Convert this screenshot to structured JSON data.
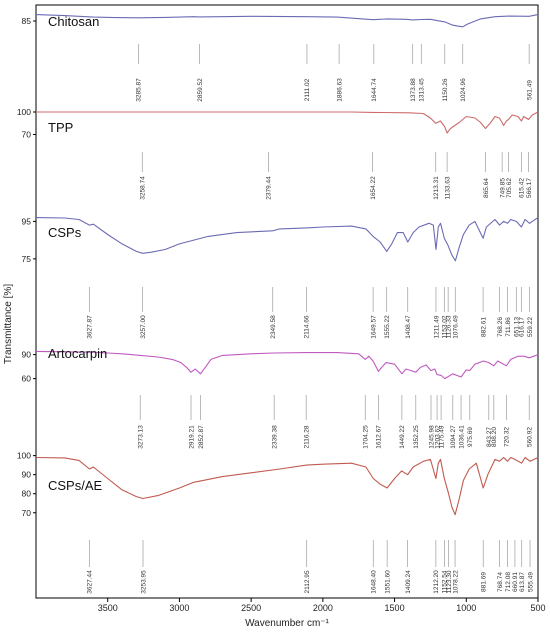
{
  "chart_data": {
    "type": "line",
    "xlabel": "Wavenumber cm⁻¹",
    "ylabel": "Transmittance [%]",
    "xlim": [
      4000,
      500
    ],
    "x_reversed": true,
    "x_ticks": [
      3500,
      3000,
      2500,
      2000,
      1500,
      1000,
      500
    ],
    "grid": false,
    "legend": "none",
    "panels": [
      {
        "name": "Chitosan",
        "color": "#6b6bb4",
        "y_ticks": [
          85
        ],
        "ylim": [
          78,
          92
        ],
        "spectrum": [
          [
            4000,
            88
          ],
          [
            3800,
            87.5
          ],
          [
            3600,
            86.8
          ],
          [
            3450,
            86.6
          ],
          [
            3285,
            86.5
          ],
          [
            3100,
            86.7
          ],
          [
            2900,
            87.0
          ],
          [
            2860,
            86.9
          ],
          [
            2500,
            87.2
          ],
          [
            2111,
            87.0
          ],
          [
            1900,
            86.8
          ],
          [
            1650,
            85.6
          ],
          [
            1550,
            86.0
          ],
          [
            1420,
            85.8
          ],
          [
            1375,
            85.5
          ],
          [
            1313,
            85.7
          ],
          [
            1250,
            85.8
          ],
          [
            1150,
            84.6
          ],
          [
            1100,
            83.2
          ],
          [
            1060,
            82.6
          ],
          [
            1025,
            82.3
          ],
          [
            990,
            83.6
          ],
          [
            900,
            86.0
          ],
          [
            800,
            87.0
          ],
          [
            700,
            87.3
          ],
          [
            562,
            87.2
          ],
          [
            500,
            88.0
          ]
        ],
        "peaks": [
          "3285.87",
          "2859.52",
          "2111.02",
          "1886.63",
          "1644.74",
          "1373.88",
          "1313.45",
          "1150.26",
          "1024.96",
          "561.49"
        ]
      },
      {
        "name": "TPP",
        "color": "#cc6b6b",
        "y_ticks": [
          100,
          70
        ],
        "ylim": [
          60,
          108
        ],
        "spectrum": [
          [
            4000,
            100
          ],
          [
            3800,
            100
          ],
          [
            3600,
            100
          ],
          [
            3400,
            100
          ],
          [
            3259,
            100
          ],
          [
            3000,
            100
          ],
          [
            2500,
            100
          ],
          [
            2379,
            100
          ],
          [
            2100,
            100
          ],
          [
            1800,
            100
          ],
          [
            1654,
            99.5
          ],
          [
            1400,
            99
          ],
          [
            1300,
            98
          ],
          [
            1250,
            92
          ],
          [
            1213,
            85
          ],
          [
            1180,
            88
          ],
          [
            1150,
            80
          ],
          [
            1134,
            72
          ],
          [
            1110,
            78
          ],
          [
            1050,
            86
          ],
          [
            1000,
            94
          ],
          [
            940,
            92
          ],
          [
            900,
            86
          ],
          [
            866,
            78
          ],
          [
            830,
            86
          ],
          [
            800,
            94
          ],
          [
            770,
            92
          ],
          [
            750,
            86
          ],
          [
            740,
            82
          ],
          [
            720,
            88
          ],
          [
            706,
            90
          ],
          [
            680,
            96
          ],
          [
            640,
            94
          ],
          [
            615,
            88
          ],
          [
            600,
            94
          ],
          [
            566,
            90
          ],
          [
            540,
            96
          ],
          [
            500,
            100
          ]
        ],
        "peaks": [
          "3258.74",
          "2379.44",
          "1654.22",
          "1213.31",
          "1133.63",
          "865.64",
          "749.85",
          "705.62",
          "615.42",
          "566.17"
        ]
      },
      {
        "name": "CSPs",
        "color": "#6b6bb4",
        "y_ticks": [
          95,
          75
        ],
        "ylim": [
          68,
          100
        ],
        "spectrum": [
          [
            4000,
            97
          ],
          [
            3800,
            96.8
          ],
          [
            3700,
            96
          ],
          [
            3628,
            93
          ],
          [
            3600,
            93.5
          ],
          [
            3500,
            88
          ],
          [
            3400,
            83
          ],
          [
            3300,
            79
          ],
          [
            3257,
            78
          ],
          [
            3200,
            78.5
          ],
          [
            3100,
            80
          ],
          [
            3000,
            83
          ],
          [
            2900,
            85
          ],
          [
            2800,
            87
          ],
          [
            2600,
            89
          ],
          [
            2350,
            90
          ],
          [
            2300,
            91
          ],
          [
            2115,
            91.5
          ],
          [
            2000,
            92
          ],
          [
            1800,
            92.5
          ],
          [
            1700,
            91
          ],
          [
            1650,
            87
          ],
          [
            1600,
            84
          ],
          [
            1555,
            79
          ],
          [
            1520,
            83
          ],
          [
            1480,
            89
          ],
          [
            1440,
            89
          ],
          [
            1408,
            84
          ],
          [
            1370,
            89
          ],
          [
            1330,
            92
          ],
          [
            1260,
            94
          ],
          [
            1230,
            93
          ],
          [
            1211,
            80
          ],
          [
            1195,
            92
          ],
          [
            1180,
            94
          ],
          [
            1153,
            86
          ],
          [
            1126,
            82
          ],
          [
            1100,
            77
          ],
          [
            1076,
            74
          ],
          [
            1050,
            81
          ],
          [
            1020,
            88
          ],
          [
            980,
            93
          ],
          [
            940,
            95
          ],
          [
            883,
            86
          ],
          [
            860,
            92
          ],
          [
            800,
            96
          ],
          [
            768,
            93
          ],
          [
            740,
            95
          ],
          [
            712,
            94
          ],
          [
            690,
            96
          ],
          [
            651,
            95
          ],
          [
            616,
            92
          ],
          [
            590,
            96
          ],
          [
            559,
            94
          ],
          [
            500,
            97
          ]
        ],
        "peaks": [
          "3627.87",
          "3257.00",
          "2349.58",
          "2114.66",
          "1649.57",
          "1555.22",
          "1408.47",
          "1211.49",
          "1153.02",
          "1126.33",
          "1076.49",
          "882.61",
          "768.26",
          "711.86",
          "651.13",
          "616.17",
          "559.22"
        ]
      },
      {
        "name": "Artocarpin",
        "color": "#c05ac0",
        "y_ticks": [
          90,
          60
        ],
        "ylim": [
          52,
          102
        ],
        "spectrum": [
          [
            4000,
            94
          ],
          [
            3800,
            93.5
          ],
          [
            3600,
            93
          ],
          [
            3500,
            92
          ],
          [
            3400,
            91
          ],
          [
            3273,
            89
          ],
          [
            3150,
            87
          ],
          [
            3050,
            84
          ],
          [
            2990,
            80
          ],
          [
            2950,
            74
          ],
          [
            2919,
            68
          ],
          [
            2890,
            72
          ],
          [
            2853,
            66
          ],
          [
            2820,
            74
          ],
          [
            2780,
            84
          ],
          [
            2700,
            89
          ],
          [
            2500,
            91
          ],
          [
            2339,
            92
          ],
          [
            2116,
            92.5
          ],
          [
            1900,
            92.5
          ],
          [
            1750,
            91
          ],
          [
            1704,
            84
          ],
          [
            1680,
            88
          ],
          [
            1650,
            82
          ],
          [
            1613,
            69
          ],
          [
            1590,
            74
          ],
          [
            1560,
            80
          ],
          [
            1500,
            78
          ],
          [
            1449,
            66
          ],
          [
            1420,
            72
          ],
          [
            1385,
            70
          ],
          [
            1352,
            68
          ],
          [
            1320,
            74
          ],
          [
            1280,
            77
          ],
          [
            1246,
            70
          ],
          [
            1220,
            72
          ],
          [
            1204,
            65
          ],
          [
            1175,
            64
          ],
          [
            1150,
            60
          ],
          [
            1094,
            66
          ],
          [
            1036,
            62
          ],
          [
            1000,
            71
          ],
          [
            976,
            70
          ],
          [
            940,
            78
          ],
          [
            880,
            82
          ],
          [
            843,
            80
          ],
          [
            808,
            76
          ],
          [
            780,
            82
          ],
          [
            720,
            76
          ],
          [
            690,
            84
          ],
          [
            640,
            88
          ],
          [
            600,
            88
          ],
          [
            561,
            86
          ],
          [
            500,
            90
          ]
        ],
        "peaks": [
          "3273.13",
          "2919.21",
          "2852.87",
          "2339.38",
          "2116.28",
          "1704.25",
          "1612.67",
          "1449.22",
          "1352.25",
          "1245.98",
          "1203.62",
          "1175.49",
          "1094.27",
          "1036.41",
          "975.69",
          "843.27",
          "808.20",
          "720.32",
          "560.92"
        ]
      },
      {
        "name": "CSPs/AE",
        "color": "#c05a50",
        "y_ticks": [
          100,
          90,
          80,
          70
        ],
        "ylim": [
          62,
          104
        ],
        "spectrum": [
          [
            4000,
            99
          ],
          [
            3800,
            98.8
          ],
          [
            3700,
            97.5
          ],
          [
            3627,
            93
          ],
          [
            3600,
            94
          ],
          [
            3500,
            88
          ],
          [
            3400,
            82
          ],
          [
            3300,
            78.5
          ],
          [
            3254,
            77.5
          ],
          [
            3150,
            79
          ],
          [
            3000,
            83
          ],
          [
            2900,
            86
          ],
          [
            2700,
            89
          ],
          [
            2500,
            91
          ],
          [
            2300,
            93
          ],
          [
            2113,
            95
          ],
          [
            2000,
            95.5
          ],
          [
            1800,
            96
          ],
          [
            1700,
            94
          ],
          [
            1648,
            88
          ],
          [
            1600,
            85
          ],
          [
            1552,
            83
          ],
          [
            1500,
            88
          ],
          [
            1450,
            92
          ],
          [
            1409,
            90
          ],
          [
            1370,
            94
          ],
          [
            1300,
            97
          ],
          [
            1250,
            98
          ],
          [
            1212,
            88
          ],
          [
            1195,
            96
          ],
          [
            1180,
            98
          ],
          [
            1153,
            88
          ],
          [
            1123,
            80
          ],
          [
            1100,
            73
          ],
          [
            1078,
            69
          ],
          [
            1050,
            77
          ],
          [
            1020,
            87
          ],
          [
            980,
            93
          ],
          [
            930,
            96
          ],
          [
            882,
            83
          ],
          [
            850,
            90
          ],
          [
            800,
            98
          ],
          [
            769,
            97
          ],
          [
            740,
            99
          ],
          [
            712,
            97
          ],
          [
            690,
            99
          ],
          [
            661,
            98
          ],
          [
            614,
            96
          ],
          [
            590,
            99
          ],
          [
            555,
            97
          ],
          [
            500,
            99
          ]
        ],
        "peaks": [
          "3627.44",
          "3253.95",
          "2112.95",
          "1648.40",
          "1551.60",
          "1409.24",
          "1212.20",
          "1152.54",
          "1123.30",
          "1078.22",
          "881.69",
          "768.74",
          "712.08",
          "660.91",
          "613.87",
          "555.49"
        ]
      }
    ]
  }
}
